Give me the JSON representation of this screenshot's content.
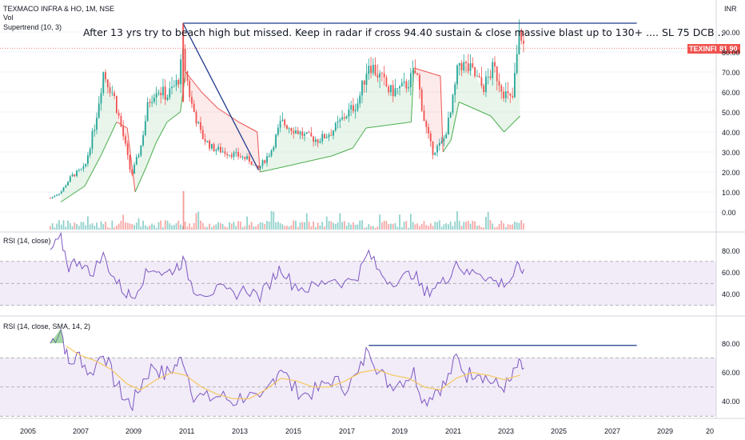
{
  "header": {
    "symbol_line": "TEXMACO INFRA & HO, 1M, NSE",
    "indicators": [
      "Vol",
      "Supertrend (10, 3)"
    ],
    "currency": "INR"
  },
  "annotation": {
    "text": "After 13 yrs try to beach high but missed. Keep in radar if cross 94.40 sustain & close massive blast up to 130+ .... SL 75 DCB .."
  },
  "price_badge": {
    "label": "TEXINFRA",
    "value": "81.90"
  },
  "colors": {
    "up": "#26a69a",
    "down": "#ef5350",
    "rsi_line": "#7e57c2",
    "rsi_band": "#ede7f6",
    "sma": "#f6c85f",
    "trendline": "#1e3a8a",
    "st_up": "#4caf50",
    "st_down": "#ef5350"
  },
  "panes": {
    "rsi1_title": "RSI (14, close)",
    "rsi2_title": "RSI (14, close, SMA, 14, 2)"
  },
  "chart_data": [
    {
      "type": "candlestick",
      "title": "TEXMACO INFRA & HO, 1M, NSE",
      "y_ticks": [
        "90.00",
        "80.00",
        "70.00",
        "60.00",
        "50.00",
        "40.00",
        "30.00",
        "20.00",
        "10.00",
        "0.00"
      ],
      "ylim": [
        0,
        95
      ],
      "x_ticks": [
        "2005",
        "2007",
        "2009",
        "2011",
        "2013",
        "2015",
        "2017",
        "2019",
        "2021",
        "2023",
        "2025",
        "2027",
        "2029",
        "20"
      ],
      "xlim": [
        2005.0,
        2030.0
      ],
      "last_price": 81.9,
      "price_path": [
        [
          2005.9,
          7
        ],
        [
          2006.3,
          10
        ],
        [
          2006.7,
          18
        ],
        [
          2007.2,
          22
        ],
        [
          2007.6,
          45
        ],
        [
          2007.9,
          70
        ],
        [
          2008.3,
          58
        ],
        [
          2008.7,
          35
        ],
        [
          2008.95,
          18
        ],
        [
          2009.3,
          32
        ],
        [
          2009.6,
          55
        ],
        [
          2009.9,
          62
        ],
        [
          2010.3,
          58
        ],
        [
          2010.7,
          65
        ],
        [
          2010.9,
          78
        ],
        [
          2011.2,
          55
        ],
        [
          2011.6,
          38
        ],
        [
          2012.0,
          32
        ],
        [
          2012.5,
          30
        ],
        [
          2013.0,
          28
        ],
        [
          2013.4,
          26
        ],
        [
          2013.7,
          21
        ],
        [
          2014.2,
          30
        ],
        [
          2014.6,
          45
        ],
        [
          2015.0,
          42
        ],
        [
          2015.5,
          38
        ],
        [
          2016.0,
          36
        ],
        [
          2016.5,
          40
        ],
        [
          2017.0,
          48
        ],
        [
          2017.5,
          55
        ],
        [
          2017.9,
          75
        ],
        [
          2018.3,
          68
        ],
        [
          2018.7,
          60
        ],
        [
          2019.2,
          62
        ],
        [
          2019.7,
          70
        ],
        [
          2020.0,
          45
        ],
        [
          2020.3,
          30
        ],
        [
          2020.7,
          35
        ],
        [
          2021.0,
          50
        ],
        [
          2021.3,
          75
        ],
        [
          2021.8,
          70
        ],
        [
          2022.2,
          62
        ],
        [
          2022.6,
          72
        ],
        [
          2023.0,
          60
        ],
        [
          2023.3,
          55
        ],
        [
          2023.6,
          92
        ],
        [
          2023.75,
          81.9
        ]
      ],
      "supertrend": [
        [
          2006.3,
          5
        ],
        [
          2007.2,
          13
        ],
        [
          2007.8,
          28
        ],
        [
          2008.4,
          45
        ],
        [
          2008.8,
          42
        ],
        [
          2009.1,
          10
        ],
        [
          2009.5,
          22
        ],
        [
          2009.9,
          35
        ],
        [
          2010.3,
          45
        ],
        [
          2010.8,
          50
        ],
        [
          2011.0,
          70
        ],
        [
          2011.6,
          60
        ],
        [
          2012.2,
          52
        ],
        [
          2013.0,
          45
        ],
        [
          2013.7,
          40
        ],
        [
          2013.8,
          20
        ],
        [
          2014.5,
          22
        ],
        [
          2015.5,
          25
        ],
        [
          2016.5,
          28
        ],
        [
          2017.3,
          32
        ],
        [
          2017.8,
          42
        ],
        [
          2019.5,
          45
        ],
        [
          2019.6,
          72
        ],
        [
          2020.6,
          68
        ],
        [
          2020.7,
          30
        ],
        [
          2021.0,
          36
        ],
        [
          2021.3,
          55
        ],
        [
          2022.5,
          48
        ],
        [
          2023.0,
          40
        ],
        [
          2023.6,
          48
        ]
      ]
    },
    {
      "type": "line",
      "title": "RSI (14, close)",
      "y_ticks": [
        "80.00",
        "60.00",
        "40.00"
      ],
      "ylim": [
        25,
        95
      ],
      "bands": [
        30,
        50,
        70
      ],
      "series": [
        {
          "values": [
            [
              2005.9,
              80
            ],
            [
              2006.3,
              90
            ],
            [
              2006.6,
              65
            ],
            [
              2007.0,
              72
            ],
            [
              2007.4,
              58
            ],
            [
              2007.9,
              75
            ],
            [
              2008.3,
              55
            ],
            [
              2008.7,
              42
            ],
            [
              2009.0,
              38
            ],
            [
              2009.4,
              55
            ],
            [
              2009.8,
              65
            ],
            [
              2010.2,
              58
            ],
            [
              2010.6,
              64
            ],
            [
              2010.9,
              70
            ],
            [
              2011.3,
              45
            ],
            [
              2011.8,
              42
            ],
            [
              2012.3,
              44
            ],
            [
              2012.8,
              40
            ],
            [
              2013.3,
              45
            ],
            [
              2013.8,
              38
            ],
            [
              2014.3,
              55
            ],
            [
              2014.6,
              65
            ],
            [
              2015.0,
              50
            ],
            [
              2015.5,
              45
            ],
            [
              2016.0,
              48
            ],
            [
              2016.5,
              55
            ],
            [
              2017.0,
              50
            ],
            [
              2017.5,
              58
            ],
            [
              2017.9,
              78
            ],
            [
              2018.3,
              60
            ],
            [
              2018.7,
              52
            ],
            [
              2019.2,
              55
            ],
            [
              2019.6,
              60
            ],
            [
              2020.0,
              40
            ],
            [
              2020.4,
              48
            ],
            [
              2020.8,
              52
            ],
            [
              2021.2,
              70
            ],
            [
              2021.6,
              58
            ],
            [
              2022.0,
              62
            ],
            [
              2022.4,
              55
            ],
            [
              2022.8,
              50
            ],
            [
              2023.2,
              52
            ],
            [
              2023.5,
              64
            ],
            [
              2023.75,
              63
            ]
          ]
        }
      ]
    },
    {
      "type": "line",
      "title": "RSI (14, close, SMA, 14, 2)",
      "y_ticks": [
        "80.00",
        "60.00",
        "40.00"
      ],
      "ylim": [
        25,
        95
      ],
      "bands": [
        30,
        50,
        70
      ],
      "series": [
        {
          "values": [
            [
              2005.9,
              80
            ],
            [
              2006.3,
              90
            ],
            [
              2006.6,
              65
            ],
            [
              2007.0,
              72
            ],
            [
              2007.4,
              58
            ],
            [
              2007.9,
              75
            ],
            [
              2008.3,
              55
            ],
            [
              2008.7,
              42
            ],
            [
              2009.0,
              38
            ],
            [
              2009.4,
              55
            ],
            [
              2009.8,
              65
            ],
            [
              2010.2,
              58
            ],
            [
              2010.6,
              64
            ],
            [
              2010.9,
              70
            ],
            [
              2011.3,
              45
            ],
            [
              2011.8,
              42
            ],
            [
              2012.3,
              44
            ],
            [
              2012.8,
              40
            ],
            [
              2013.3,
              45
            ],
            [
              2013.8,
              38
            ],
            [
              2014.3,
              55
            ],
            [
              2014.6,
              65
            ],
            [
              2015.0,
              50
            ],
            [
              2015.5,
              45
            ],
            [
              2016.0,
              48
            ],
            [
              2016.5,
              55
            ],
            [
              2017.0,
              50
            ],
            [
              2017.5,
              58
            ],
            [
              2017.9,
              78
            ],
            [
              2018.3,
              60
            ],
            [
              2018.7,
              52
            ],
            [
              2019.2,
              55
            ],
            [
              2019.6,
              60
            ],
            [
              2020.0,
              40
            ],
            [
              2020.4,
              48
            ],
            [
              2020.8,
              52
            ],
            [
              2021.2,
              70
            ],
            [
              2021.6,
              58
            ],
            [
              2022.0,
              62
            ],
            [
              2022.4,
              55
            ],
            [
              2022.8,
              50
            ],
            [
              2023.2,
              52
            ],
            [
              2023.5,
              64
            ],
            [
              2023.75,
              63
            ]
          ]
        },
        {
          "values": [
            [
              2006.5,
              78
            ],
            [
              2007.0,
              72
            ],
            [
              2007.6,
              68
            ],
            [
              2008.2,
              62
            ],
            [
              2008.8,
              52
            ],
            [
              2009.3,
              48
            ],
            [
              2009.9,
              55
            ],
            [
              2010.5,
              60
            ],
            [
              2011.0,
              58
            ],
            [
              2011.6,
              50
            ],
            [
              2012.2,
              45
            ],
            [
              2012.8,
              42
            ],
            [
              2013.4,
              42
            ],
            [
              2014.0,
              48
            ],
            [
              2014.6,
              56
            ],
            [
              2015.2,
              54
            ],
            [
              2015.8,
              50
            ],
            [
              2016.4,
              50
            ],
            [
              2017.0,
              54
            ],
            [
              2017.6,
              60
            ],
            [
              2018.2,
              62
            ],
            [
              2018.8,
              58
            ],
            [
              2019.4,
              56
            ],
            [
              2020.0,
              50
            ],
            [
              2020.6,
              48
            ],
            [
              2021.2,
              56
            ],
            [
              2021.8,
              60
            ],
            [
              2022.4,
              58
            ],
            [
              2023.0,
              55
            ],
            [
              2023.6,
              58
            ]
          ]
        }
      ]
    }
  ]
}
